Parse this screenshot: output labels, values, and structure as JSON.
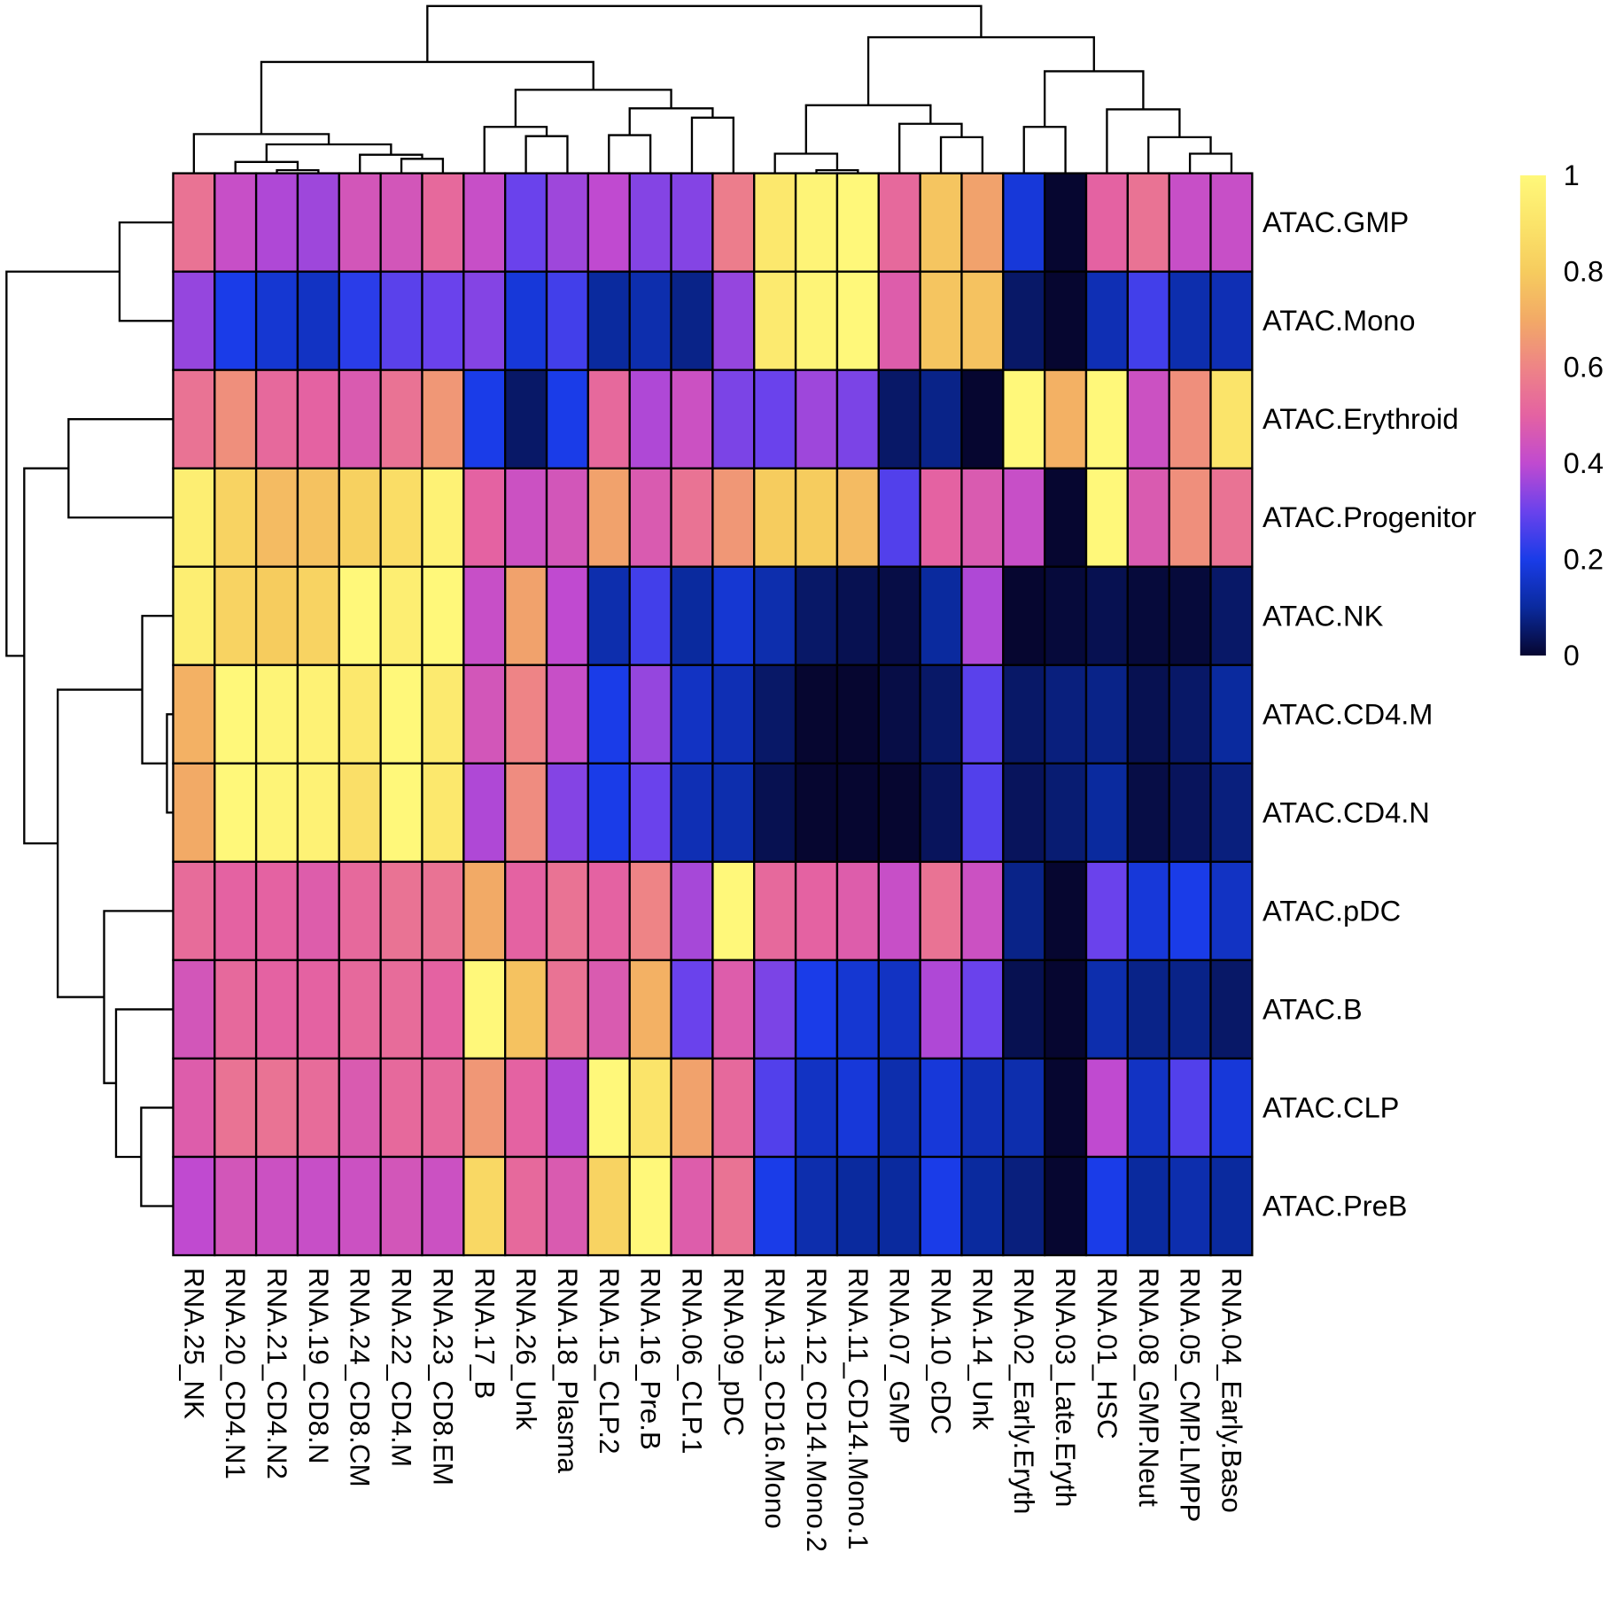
{
  "chart_data": {
    "type": "heatmap",
    "rows": [
      "ATAC.GMP",
      "ATAC.Mono",
      "ATAC.Erythroid",
      "ATAC.Progenitor",
      "ATAC.NK",
      "ATAC.CD4.M",
      "ATAC.CD4.N",
      "ATAC.pDC",
      "ATAC.B",
      "ATAC.CLP",
      "ATAC.PreB"
    ],
    "columns": [
      "RNA.25_NK",
      "RNA.20_CD4.N1",
      "RNA.21_CD4.N2",
      "RNA.19_CD8.N",
      "RNA.24_CD8.CM",
      "RNA.22_CD4.M",
      "RNA.23_CD8.EM",
      "RNA.17_B",
      "RNA.26_Unk",
      "RNA.18_Plasma",
      "RNA.15_CLP.2",
      "RNA.16_Pre.B",
      "RNA.06_CLP.1",
      "RNA.09_pDC",
      "RNA.13_CD16.Mono",
      "RNA.12_CD14.Mono.2",
      "RNA.11_CD14.Mono.1",
      "RNA.07_GMP",
      "RNA.10_cDC",
      "RNA.14_Unk",
      "RNA.02_Early.Eryth",
      "RNA.03_Late.Eryth",
      "RNA.01_HSC",
      "RNA.08_GMP.Neut",
      "RNA.05_CMP.LMPP",
      "RNA.04_Early.Baso"
    ],
    "values": [
      [
        0.55,
        0.42,
        0.38,
        0.36,
        0.45,
        0.45,
        0.52,
        0.42,
        0.3,
        0.36,
        0.4,
        0.33,
        0.33,
        0.58,
        0.92,
        0.98,
        1.0,
        0.52,
        0.78,
        0.68,
        0.18,
        0.0,
        0.5,
        0.55,
        0.42,
        0.42
      ],
      [
        0.35,
        0.2,
        0.17,
        0.15,
        0.22,
        0.28,
        0.3,
        0.33,
        0.18,
        0.25,
        0.1,
        0.12,
        0.08,
        0.35,
        0.93,
        0.98,
        1.0,
        0.48,
        0.78,
        0.77,
        0.05,
        0.0,
        0.13,
        0.25,
        0.12,
        0.13
      ],
      [
        0.55,
        0.63,
        0.52,
        0.5,
        0.47,
        0.55,
        0.65,
        0.2,
        0.05,
        0.2,
        0.52,
        0.38,
        0.43,
        0.32,
        0.3,
        0.36,
        0.32,
        0.05,
        0.08,
        0.0,
        1.0,
        0.72,
        1.0,
        0.43,
        0.63,
        0.9
      ],
      [
        0.95,
        0.83,
        0.75,
        0.77,
        0.82,
        0.87,
        0.97,
        0.5,
        0.43,
        0.45,
        0.68,
        0.47,
        0.55,
        0.65,
        0.8,
        0.8,
        0.75,
        0.27,
        0.5,
        0.47,
        0.42,
        0.0,
        1.0,
        0.47,
        0.63,
        0.55
      ],
      [
        0.95,
        0.83,
        0.8,
        0.83,
        1.0,
        0.95,
        1.0,
        0.42,
        0.68,
        0.4,
        0.12,
        0.25,
        0.1,
        0.17,
        0.12,
        0.05,
        0.03,
        0.02,
        0.1,
        0.38,
        0.0,
        0.01,
        0.03,
        0.01,
        0.01,
        0.05
      ],
      [
        0.72,
        1.0,
        0.98,
        0.97,
        0.92,
        1.0,
        0.93,
        0.45,
        0.6,
        0.42,
        0.2,
        0.35,
        0.15,
        0.13,
        0.05,
        0.0,
        0.0,
        0.02,
        0.05,
        0.28,
        0.05,
        0.07,
        0.08,
        0.03,
        0.05,
        0.1
      ],
      [
        0.7,
        1.0,
        0.98,
        0.97,
        0.88,
        1.0,
        0.92,
        0.38,
        0.62,
        0.33,
        0.2,
        0.3,
        0.13,
        0.12,
        0.03,
        0.0,
        0.0,
        0.0,
        0.04,
        0.27,
        0.04,
        0.06,
        0.1,
        0.02,
        0.04,
        0.07
      ],
      [
        0.53,
        0.5,
        0.5,
        0.48,
        0.52,
        0.55,
        0.55,
        0.7,
        0.5,
        0.55,
        0.5,
        0.6,
        0.37,
        1.0,
        0.52,
        0.5,
        0.48,
        0.42,
        0.55,
        0.43,
        0.08,
        0.0,
        0.3,
        0.18,
        0.2,
        0.15
      ],
      [
        0.45,
        0.52,
        0.5,
        0.5,
        0.52,
        0.53,
        0.5,
        1.0,
        0.77,
        0.55,
        0.47,
        0.72,
        0.3,
        0.48,
        0.32,
        0.2,
        0.17,
        0.15,
        0.38,
        0.3,
        0.03,
        0.0,
        0.12,
        0.08,
        0.08,
        0.05
      ],
      [
        0.48,
        0.55,
        0.55,
        0.53,
        0.47,
        0.52,
        0.52,
        0.65,
        0.5,
        0.38,
        1.0,
        0.9,
        0.68,
        0.52,
        0.27,
        0.15,
        0.18,
        0.12,
        0.18,
        0.13,
        0.12,
        0.0,
        0.4,
        0.15,
        0.27,
        0.18
      ],
      [
        0.4,
        0.45,
        0.43,
        0.42,
        0.43,
        0.45,
        0.43,
        0.85,
        0.52,
        0.47,
        0.83,
        1.0,
        0.48,
        0.55,
        0.2,
        0.12,
        0.1,
        0.1,
        0.2,
        0.1,
        0.07,
        0.0,
        0.2,
        0.1,
        0.12,
        0.1
      ]
    ],
    "zlim": [
      0,
      1
    ],
    "colorbar": {
      "ticks": [
        "0",
        "0.2",
        "0.4",
        "0.6",
        "0.8",
        "1"
      ],
      "tick_values": [
        0,
        0.2,
        0.4,
        0.6,
        0.8,
        1
      ],
      "colors": [
        "#060630",
        "#0a2a9e",
        "#1a3ce8",
        "#6a42ec",
        "#c04ad0",
        "#e462a2",
        "#ee8486",
        "#f2aa66",
        "#f6cc5e",
        "#fbe46a",
        "#fff87a"
      ],
      "placement": "right"
    },
    "row_dendrogram": "left",
    "column_dendrogram": "top",
    "grid": false
  }
}
